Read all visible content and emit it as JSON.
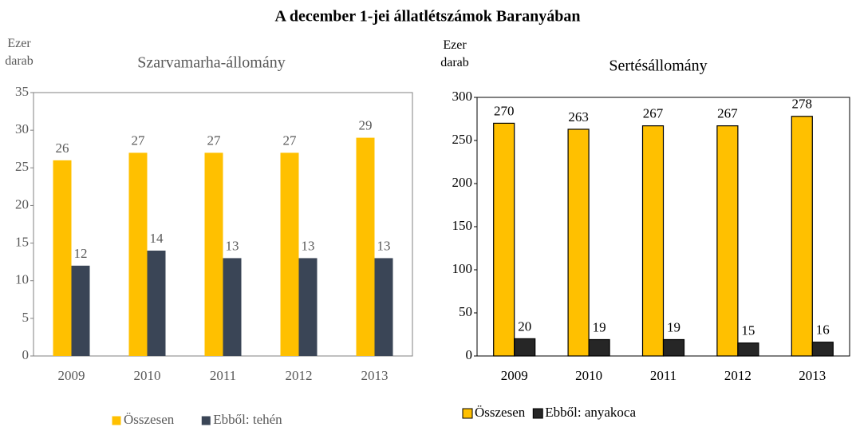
{
  "title": "A december 1-jei állatlétszámok Baranyában",
  "chart_data": [
    {
      "type": "bar",
      "title": "Szarvamarha-állomány",
      "y_label": "Ezer darab",
      "categories": [
        "2009",
        "2010",
        "2011",
        "2012",
        "2013"
      ],
      "series": [
        {
          "name": "Összesen",
          "color": "#ffc000",
          "values": [
            26,
            27,
            27,
            27,
            29
          ]
        },
        {
          "name": "Ebből: tehén",
          "color": "#3a4556",
          "values": [
            12,
            14,
            13,
            13,
            13
          ]
        }
      ],
      "ylim": [
        0,
        35
      ],
      "yticks": [
        0,
        5,
        10,
        15,
        20,
        25,
        30,
        35
      ],
      "grid": false,
      "legend": "bottom",
      "text_color": "#595959",
      "bar_edgecolor": "none"
    },
    {
      "type": "bar",
      "title": "Sertésállomány",
      "y_label": "Ezer darab",
      "categories": [
        "2009",
        "2010",
        "2011",
        "2012",
        "2013"
      ],
      "series": [
        {
          "name": "Összesen",
          "color": "#ffc000",
          "values": [
            270,
            263,
            267,
            267,
            278
          ]
        },
        {
          "name": "Ebből: anyakoca",
          "color": "#262626",
          "values": [
            20,
            19,
            19,
            15,
            16
          ]
        }
      ],
      "ylim": [
        0,
        300
      ],
      "yticks": [
        0,
        50,
        100,
        150,
        200,
        250,
        300
      ],
      "grid": false,
      "legend": "bottom",
      "text_color": "#000000",
      "bar_edgecolor": "#000000"
    }
  ]
}
